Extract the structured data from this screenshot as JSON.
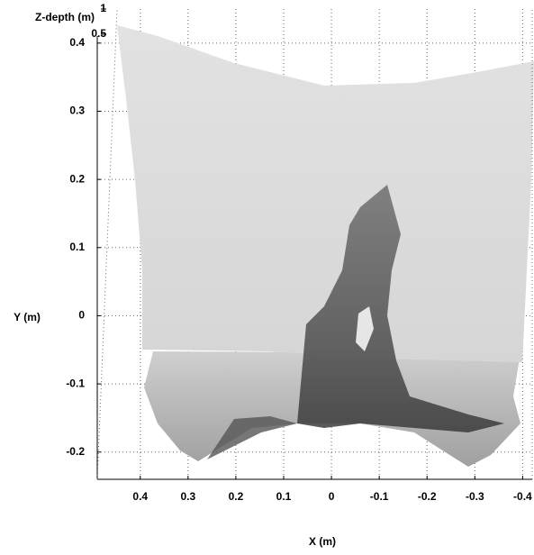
{
  "chart_data": {
    "type": "surface",
    "title": "Z-depth (m)",
    "x_label": "X (m)",
    "y_label": "Y (m)",
    "xlim": [
      0.49,
      -0.42
    ],
    "xticks": [
      0.4,
      0.3,
      0.2,
      0.1,
      0,
      -0.1,
      -0.2,
      -0.3,
      -0.4
    ],
    "ylim": [
      -0.24,
      0.45
    ],
    "yticks": [
      -0.2,
      -0.1,
      0,
      0.1,
      0.2,
      0.3,
      0.4
    ],
    "zlim": [
      0,
      1
    ],
    "zticks": [
      0.5,
      1
    ],
    "grid": true
  }
}
